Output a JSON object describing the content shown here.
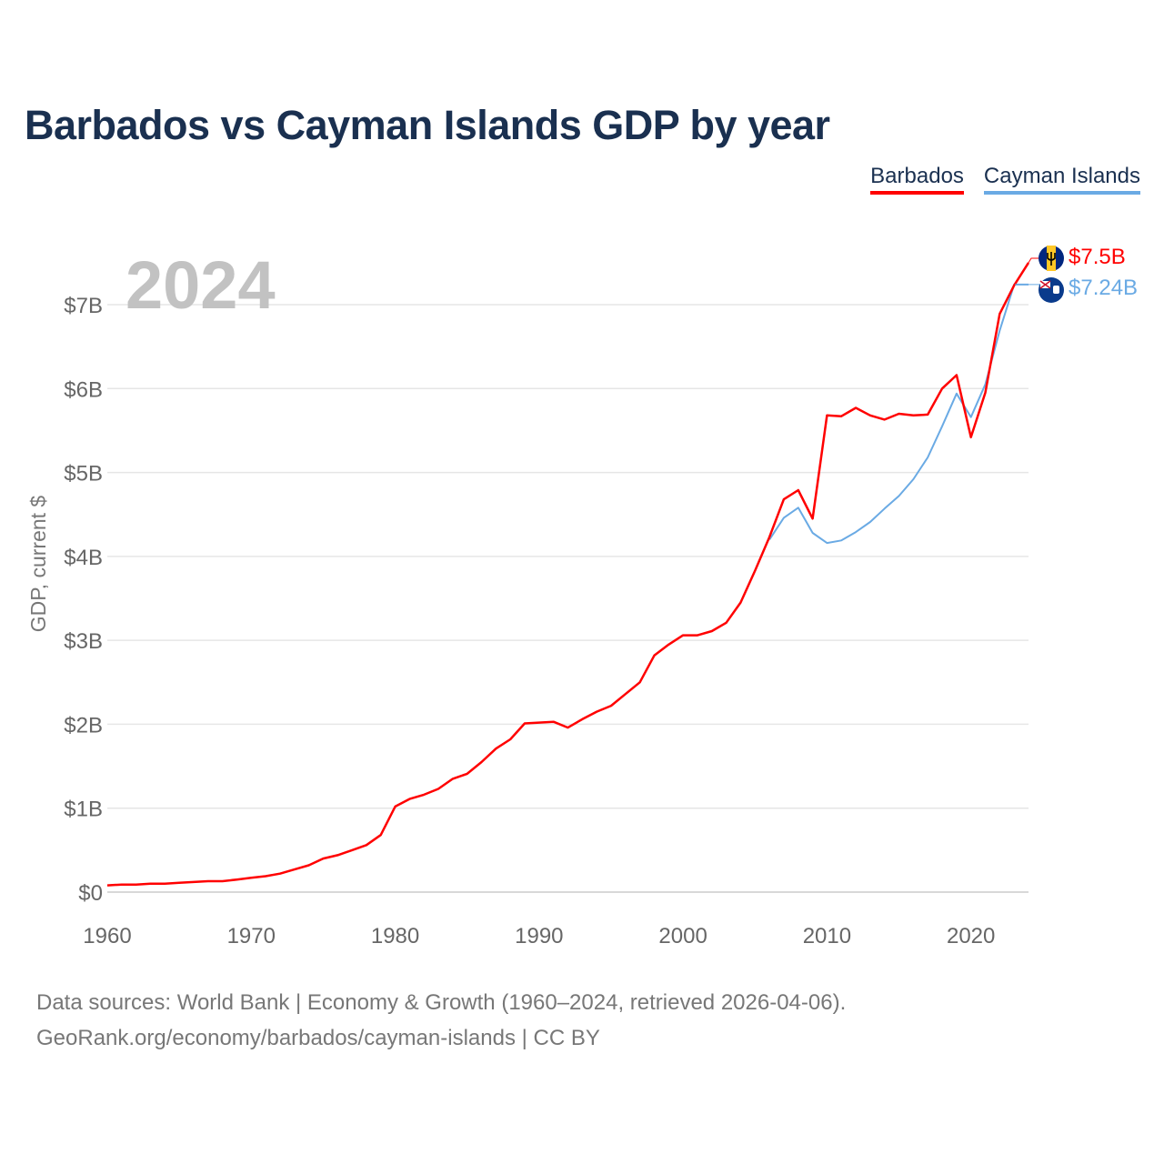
{
  "title": "Barbados vs Cayman Islands GDP by year",
  "legend": [
    {
      "name": "Barbados",
      "color": "#ff0000"
    },
    {
      "name": "Cayman Islands",
      "color": "#6aaae4"
    }
  ],
  "year_overlay": "2024",
  "footer": {
    "line1": "Data sources: World Bank | Economy & Growth (1960–2024, retrieved 2026-04-06).",
    "line2": "GeoRank.org/economy/barbados/cayman-islands | CC BY"
  },
  "end_labels": {
    "barbados": "$7.5B",
    "cayman": "$7.24B"
  },
  "icons": {
    "barbados": "barbados-flag-icon",
    "cayman": "cayman-islands-flag-icon"
  },
  "chart_data": {
    "type": "line",
    "title": "Barbados vs Cayman Islands GDP by year",
    "xlabel": "",
    "ylabel": "GDP, current $",
    "xlim": [
      1960,
      2024
    ],
    "ylim": [
      0,
      7.5
    ],
    "grid": true,
    "legend_position": "top-right",
    "x_ticks": [
      {
        "value": 1960,
        "label": "1960"
      },
      {
        "value": 1970,
        "label": "1970"
      },
      {
        "value": 1980,
        "label": "1980"
      },
      {
        "value": 1990,
        "label": "1990"
      },
      {
        "value": 2000,
        "label": "2000"
      },
      {
        "value": 2010,
        "label": "2010"
      },
      {
        "value": 2020,
        "label": "2020"
      }
    ],
    "y_ticks": [
      {
        "value": 0,
        "label": "$0"
      },
      {
        "value": 1,
        "label": "$1B"
      },
      {
        "value": 2,
        "label": "$2B"
      },
      {
        "value": 3,
        "label": "$3B"
      },
      {
        "value": 4,
        "label": "$4B"
      },
      {
        "value": 5,
        "label": "$5B"
      },
      {
        "value": 6,
        "label": "$6B"
      },
      {
        "value": 7,
        "label": "$7B"
      }
    ],
    "series": [
      {
        "name": "Barbados",
        "color": "#ff0000",
        "x": [
          1960,
          1961,
          1962,
          1963,
          1964,
          1965,
          1966,
          1967,
          1968,
          1969,
          1970,
          1971,
          1972,
          1973,
          1974,
          1975,
          1976,
          1977,
          1978,
          1979,
          1980,
          1981,
          1982,
          1983,
          1984,
          1985,
          1986,
          1987,
          1988,
          1989,
          1990,
          1991,
          1992,
          1993,
          1994,
          1995,
          1996,
          1997,
          1998,
          1999,
          2000,
          2001,
          2002,
          2003,
          2004,
          2005,
          2006,
          2007,
          2008,
          2009,
          2010,
          2011,
          2012,
          2013,
          2014,
          2015,
          2016,
          2017,
          2018,
          2019,
          2020,
          2021,
          2022,
          2023,
          2024
        ],
        "values": [
          0.08,
          0.09,
          0.09,
          0.1,
          0.1,
          0.11,
          0.12,
          0.13,
          0.13,
          0.15,
          0.17,
          0.19,
          0.22,
          0.27,
          0.32,
          0.4,
          0.44,
          0.5,
          0.56,
          0.68,
          1.02,
          1.11,
          1.16,
          1.23,
          1.35,
          1.41,
          1.55,
          1.71,
          1.82,
          2.01,
          2.02,
          2.03,
          1.96,
          2.06,
          2.15,
          2.22,
          2.36,
          2.5,
          2.82,
          2.95,
          3.06,
          3.06,
          3.11,
          3.21,
          3.45,
          3.83,
          4.23,
          4.68,
          4.79,
          4.45,
          5.68,
          5.67,
          5.77,
          5.68,
          5.63,
          5.7,
          5.68,
          5.69,
          6.0,
          6.16,
          5.42,
          5.95,
          6.89,
          7.23,
          7.5
        ]
      },
      {
        "name": "Cayman Islands",
        "color": "#6aaae4",
        "x": [
          2006,
          2007,
          2008,
          2009,
          2010,
          2011,
          2012,
          2013,
          2014,
          2015,
          2016,
          2017,
          2018,
          2019,
          2020,
          2021,
          2022,
          2023,
          2024
        ],
        "values": [
          4.2,
          4.46,
          4.58,
          4.28,
          4.16,
          4.19,
          4.29,
          4.41,
          4.57,
          4.72,
          4.92,
          5.18,
          5.55,
          5.94,
          5.66,
          6.05,
          6.69,
          7.24,
          7.24
        ]
      }
    ]
  }
}
